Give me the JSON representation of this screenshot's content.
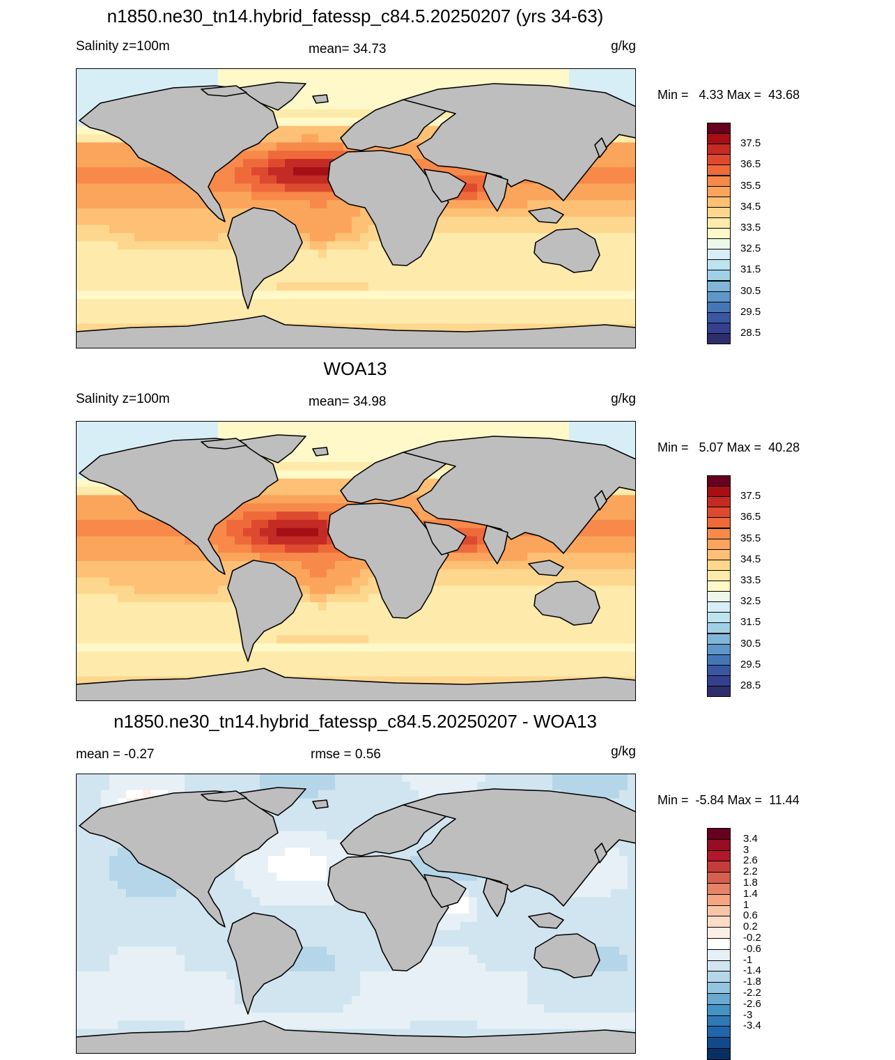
{
  "panels": [
    {
      "title": "n1850.ne30_tn14.hybrid_fatessp_c84.5.20250207 (yrs 34-63)",
      "left_label": "Salinity z=100m",
      "center_label": "mean=  34.73",
      "units": "g/kg",
      "minmax": "Min =   4.33 Max =  43.68",
      "colorbar_labels": [
        "37.5",
        "36.5",
        "35.5",
        "34.5",
        "33.5",
        "32.5",
        "31.5",
        "30.5",
        "29.5",
        "28.5"
      ],
      "colors": [
        "#67001f",
        "#a50f15",
        "#c42b25",
        "#de4a2f",
        "#ef6a3a",
        "#f7894a",
        "#fba55c",
        "#fdc074",
        "#fed78f",
        "#feeaaa",
        "#fff8c8",
        "#eef8e8",
        "#d7eef6",
        "#bde3ef",
        "#a0d0e6",
        "#80b6d8",
        "#5f97c8",
        "#4577b6",
        "#3b57a2",
        "#35418e",
        "#302d6d"
      ],
      "kind": "abs",
      "hot_x": 0.42,
      "hot_y": 0.37,
      "hot_val": 37.2
    },
    {
      "title": "WOA13",
      "left_label": "Salinity z=100m",
      "center_label": "mean=  34.98",
      "units": "g/kg",
      "minmax": "Min =   5.07 Max =  40.28",
      "colorbar_labels": [
        "37.5",
        "36.5",
        "35.5",
        "34.5",
        "33.5",
        "32.5",
        "31.5",
        "30.5",
        "29.5",
        "28.5"
      ],
      "colors": [
        "#67001f",
        "#a50f15",
        "#c42b25",
        "#de4a2f",
        "#ef6a3a",
        "#f7894a",
        "#fba55c",
        "#fdc074",
        "#fed78f",
        "#feeaaa",
        "#fff8c8",
        "#eef8e8",
        "#d7eef6",
        "#bde3ef",
        "#a0d0e6",
        "#80b6d8",
        "#5f97c8",
        "#4577b6",
        "#3b57a2",
        "#35418e",
        "#302d6d"
      ],
      "kind": "abs",
      "hot_x": 0.4,
      "hot_y": 0.4,
      "hot_val": 37.0
    },
    {
      "title": "n1850.ne30_tn14.hybrid_fatessp_c84.5.20250207 - WOA13",
      "left_label": "mean =  -0.27",
      "center_label": "rmse =   0.56",
      "units": "g/kg",
      "minmax": "Min =  -5.84 Max =  11.44",
      "colorbar_labels": [
        "3.4",
        "3",
        "2.6",
        "2.2",
        "1.8",
        "1.4",
        "1",
        "0.6",
        "0.2",
        "-0.2",
        "-0.6",
        "-1",
        "-1.4",
        "-1.8",
        "-2.2",
        "-2.6",
        "-3",
        "-3.4"
      ],
      "colors": [
        "#67001f",
        "#970d23",
        "#b2182b",
        "#c43c3c",
        "#d6604d",
        "#e58368",
        "#f4a582",
        "#f8c5a8",
        "#fddbc7",
        "#fdeee5",
        "#ffffff",
        "#e6f0f6",
        "#d1e5f0",
        "#b5d6e8",
        "#92c5de",
        "#6aa9d0",
        "#4393c3",
        "#2f79b5",
        "#2166ac",
        "#12498a",
        "#053061"
      ],
      "kind": "diff",
      "hot_x": 0.67,
      "hot_y": 0.47,
      "hot_val": 1.2
    }
  ]
}
